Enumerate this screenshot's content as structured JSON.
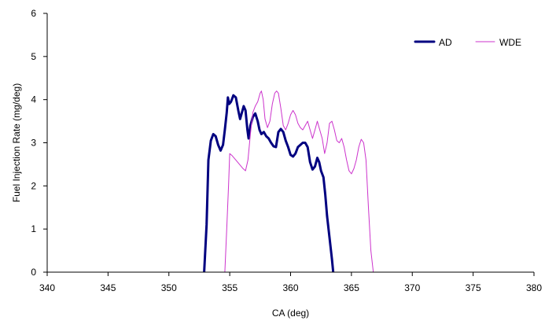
{
  "chart_data": {
    "type": "line",
    "xlabel": "CA  (deg)",
    "ylabel": "Fuel Injection Rate  (mg/deg)",
    "xlim": [
      340,
      380
    ],
    "ylim": [
      0,
      6
    ],
    "x_ticks": [
      "340",
      "345",
      "350",
      "355",
      "360",
      "365",
      "370",
      "375",
      "380"
    ],
    "y_ticks": [
      "0",
      "1",
      "2",
      "3",
      "4",
      "5",
      "6"
    ],
    "grid": false,
    "legend_position": "top-right",
    "series": [
      {
        "name": "AD",
        "color": "#000080",
        "stroke_width": 3,
        "points": [
          [
            352.9,
            0.0
          ],
          [
            353.1,
            1.1
          ],
          [
            353.25,
            2.6
          ],
          [
            353.45,
            3.05
          ],
          [
            353.65,
            3.2
          ],
          [
            353.85,
            3.15
          ],
          [
            354.05,
            2.95
          ],
          [
            354.25,
            2.82
          ],
          [
            354.45,
            2.95
          ],
          [
            354.6,
            3.3
          ],
          [
            354.75,
            3.7
          ],
          [
            354.85,
            4.05
          ],
          [
            354.95,
            3.9
          ],
          [
            355.1,
            3.95
          ],
          [
            355.3,
            4.1
          ],
          [
            355.5,
            4.05
          ],
          [
            355.7,
            3.75
          ],
          [
            355.85,
            3.55
          ],
          [
            356.0,
            3.7
          ],
          [
            356.15,
            3.85
          ],
          [
            356.3,
            3.75
          ],
          [
            356.45,
            3.3
          ],
          [
            356.55,
            3.1
          ],
          [
            356.7,
            3.4
          ],
          [
            356.9,
            3.6
          ],
          [
            357.1,
            3.68
          ],
          [
            357.3,
            3.5
          ],
          [
            357.45,
            3.3
          ],
          [
            357.6,
            3.2
          ],
          [
            357.8,
            3.25
          ],
          [
            358.0,
            3.15
          ],
          [
            358.2,
            3.1
          ],
          [
            358.4,
            3.0
          ],
          [
            358.6,
            2.92
          ],
          [
            358.8,
            2.9
          ],
          [
            359.0,
            3.25
          ],
          [
            359.2,
            3.32
          ],
          [
            359.4,
            3.25
          ],
          [
            359.6,
            3.05
          ],
          [
            359.8,
            2.9
          ],
          [
            360.0,
            2.72
          ],
          [
            360.2,
            2.68
          ],
          [
            360.4,
            2.75
          ],
          [
            360.6,
            2.9
          ],
          [
            360.8,
            2.95
          ],
          [
            361.0,
            3.0
          ],
          [
            361.2,
            3.0
          ],
          [
            361.4,
            2.9
          ],
          [
            361.6,
            2.55
          ],
          [
            361.8,
            2.38
          ],
          [
            362.0,
            2.45
          ],
          [
            362.2,
            2.65
          ],
          [
            362.35,
            2.55
          ],
          [
            362.5,
            2.35
          ],
          [
            362.7,
            2.2
          ],
          [
            362.85,
            1.8
          ],
          [
            363.0,
            1.3
          ],
          [
            363.2,
            0.8
          ],
          [
            363.4,
            0.3
          ],
          [
            363.5,
            0.0
          ]
        ]
      },
      {
        "name": "WDE",
        "color": "#cc33cc",
        "stroke_width": 1,
        "points": [
          [
            354.6,
            0.0
          ],
          [
            354.75,
            1.0
          ],
          [
            354.9,
            2.0
          ],
          [
            355.0,
            2.75
          ],
          [
            355.2,
            2.7
          ],
          [
            355.5,
            2.6
          ],
          [
            355.8,
            2.5
          ],
          [
            356.1,
            2.4
          ],
          [
            356.3,
            2.35
          ],
          [
            356.5,
            2.6
          ],
          [
            356.7,
            3.2
          ],
          [
            356.9,
            3.7
          ],
          [
            357.1,
            3.85
          ],
          [
            357.3,
            3.95
          ],
          [
            357.5,
            4.15
          ],
          [
            357.6,
            4.2
          ],
          [
            357.75,
            4.0
          ],
          [
            357.9,
            3.55
          ],
          [
            358.1,
            3.35
          ],
          [
            358.3,
            3.5
          ],
          [
            358.5,
            3.9
          ],
          [
            358.7,
            4.15
          ],
          [
            358.85,
            4.2
          ],
          [
            359.0,
            4.15
          ],
          [
            359.2,
            3.8
          ],
          [
            359.4,
            3.4
          ],
          [
            359.6,
            3.3
          ],
          [
            359.8,
            3.45
          ],
          [
            360.0,
            3.65
          ],
          [
            360.2,
            3.75
          ],
          [
            360.4,
            3.65
          ],
          [
            360.6,
            3.45
          ],
          [
            360.8,
            3.35
          ],
          [
            361.0,
            3.3
          ],
          [
            361.2,
            3.4
          ],
          [
            361.4,
            3.5
          ],
          [
            361.6,
            3.3
          ],
          [
            361.8,
            3.1
          ],
          [
            362.0,
            3.3
          ],
          [
            362.2,
            3.5
          ],
          [
            362.4,
            3.3
          ],
          [
            362.6,
            3.1
          ],
          [
            362.8,
            2.75
          ],
          [
            363.0,
            3.0
          ],
          [
            363.2,
            3.45
          ],
          [
            363.4,
            3.5
          ],
          [
            363.6,
            3.3
          ],
          [
            363.8,
            3.05
          ],
          [
            364.0,
            3.0
          ],
          [
            364.2,
            3.1
          ],
          [
            364.4,
            2.9
          ],
          [
            364.6,
            2.6
          ],
          [
            364.8,
            2.35
          ],
          [
            365.0,
            2.28
          ],
          [
            365.2,
            2.4
          ],
          [
            365.4,
            2.6
          ],
          [
            365.6,
            2.9
          ],
          [
            365.8,
            3.08
          ],
          [
            366.0,
            3.0
          ],
          [
            366.2,
            2.6
          ],
          [
            366.4,
            1.5
          ],
          [
            366.6,
            0.5
          ],
          [
            366.8,
            0.0
          ]
        ]
      }
    ]
  }
}
